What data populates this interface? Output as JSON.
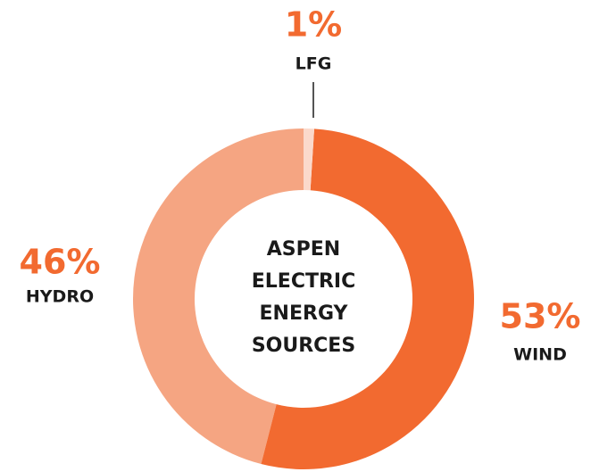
{
  "chart_data": {
    "type": "donut",
    "title": "ASPEN ELECTRIC ENERGY SOURCES",
    "categories": [
      "LFG",
      "WIND",
      "HYDRO"
    ],
    "values": [
      1,
      53,
      46
    ],
    "value_labels": [
      "1%",
      "53%",
      "46%"
    ],
    "colors": [
      "#fbd9cb",
      "#f26a30",
      "#f5a582"
    ]
  }
}
